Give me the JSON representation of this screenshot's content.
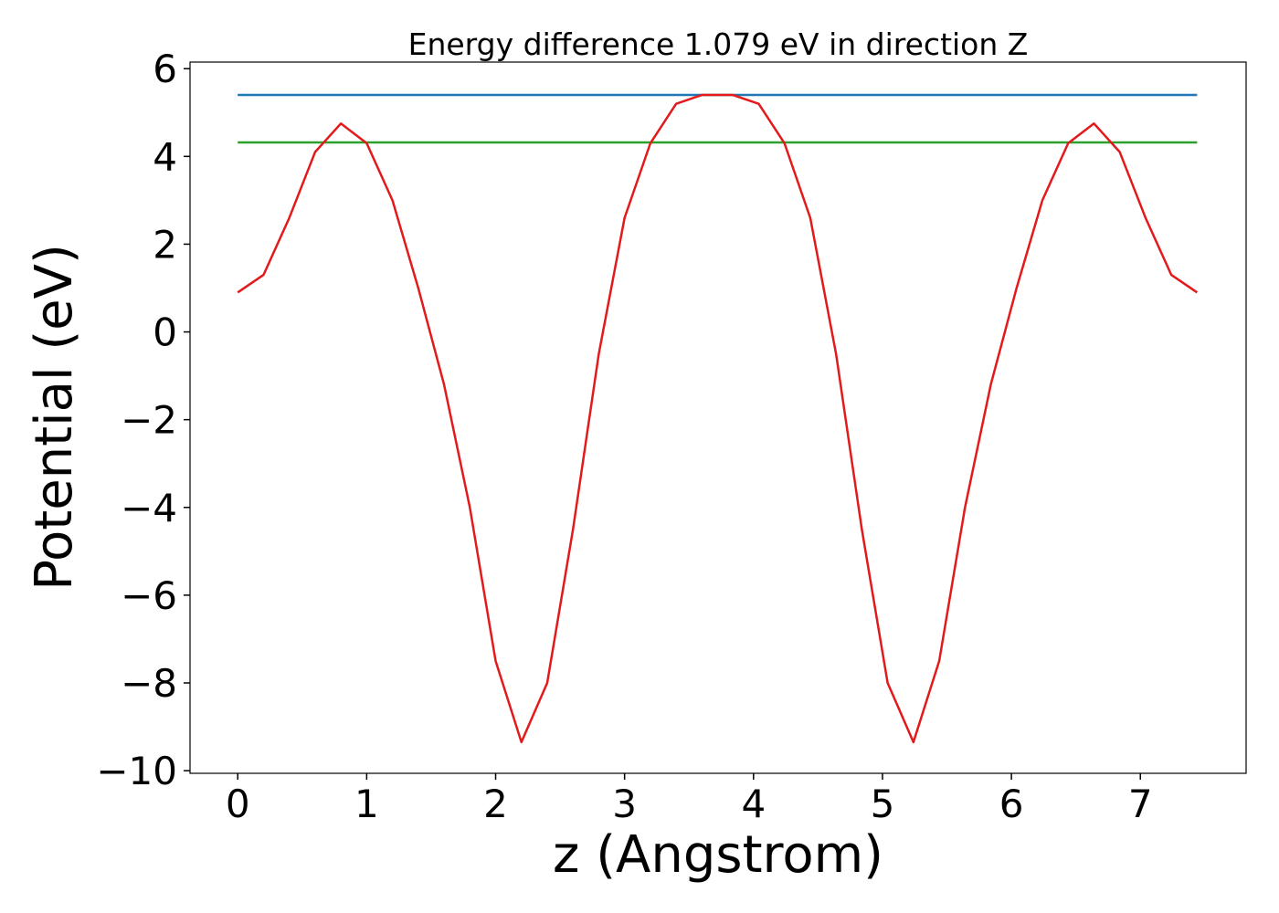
{
  "chart_data": {
    "type": "line",
    "title": "Energy difference 1.079 eV in direction Z",
    "xlabel": "z (Angstrom)",
    "ylabel": "Potential (eV)",
    "xlim": [
      -0.37,
      7.82
    ],
    "ylim": [
      -10.06,
      6.15
    ],
    "xticks": [
      0,
      1,
      2,
      3,
      4,
      5,
      6,
      7
    ],
    "yticks": [
      {
        "value": -10,
        "label": "−10"
      },
      {
        "value": -8,
        "label": "−8"
      },
      {
        "value": -6,
        "label": "−6"
      },
      {
        "value": -4,
        "label": "−4"
      },
      {
        "value": -2,
        "label": "−2"
      },
      0,
      2,
      4,
      6
    ],
    "grid": false,
    "series": [
      {
        "color": "#1f77b4",
        "x": [
          0,
          7.44
        ],
        "values": [
          5.4,
          5.4
        ]
      },
      {
        "color": "#2ca02c",
        "x": [
          0,
          7.44
        ],
        "values": [
          4.32,
          4.32
        ]
      },
      {
        "color": "#e31a1c",
        "x": [
          0,
          0.2,
          0.4,
          0.6,
          0.8,
          1.0,
          1.2,
          1.4,
          1.6,
          1.8,
          2.0,
          2.2,
          2.4,
          2.6,
          2.8,
          3.0,
          3.2,
          3.4,
          3.6,
          3.72,
          3.84,
          4.04,
          4.24,
          4.44,
          4.64,
          4.84,
          5.04,
          5.24,
          5.44,
          5.64,
          5.84,
          6.04,
          6.24,
          6.44,
          6.64,
          6.84,
          7.04,
          7.24,
          7.44
        ],
        "values": [
          0.9,
          1.3,
          2.6,
          4.1,
          4.75,
          4.3,
          3.0,
          1.0,
          -1.2,
          -4.0,
          -7.5,
          -9.35,
          -8.0,
          -4.5,
          -0.5,
          2.6,
          4.3,
          5.2,
          5.4,
          5.4,
          5.4,
          5.2,
          4.3,
          2.6,
          -0.5,
          -4.5,
          -8.0,
          -9.35,
          -7.5,
          -4.0,
          -1.2,
          1.0,
          3.0,
          4.3,
          4.75,
          4.1,
          2.6,
          1.3,
          0.9
        ]
      }
    ]
  }
}
